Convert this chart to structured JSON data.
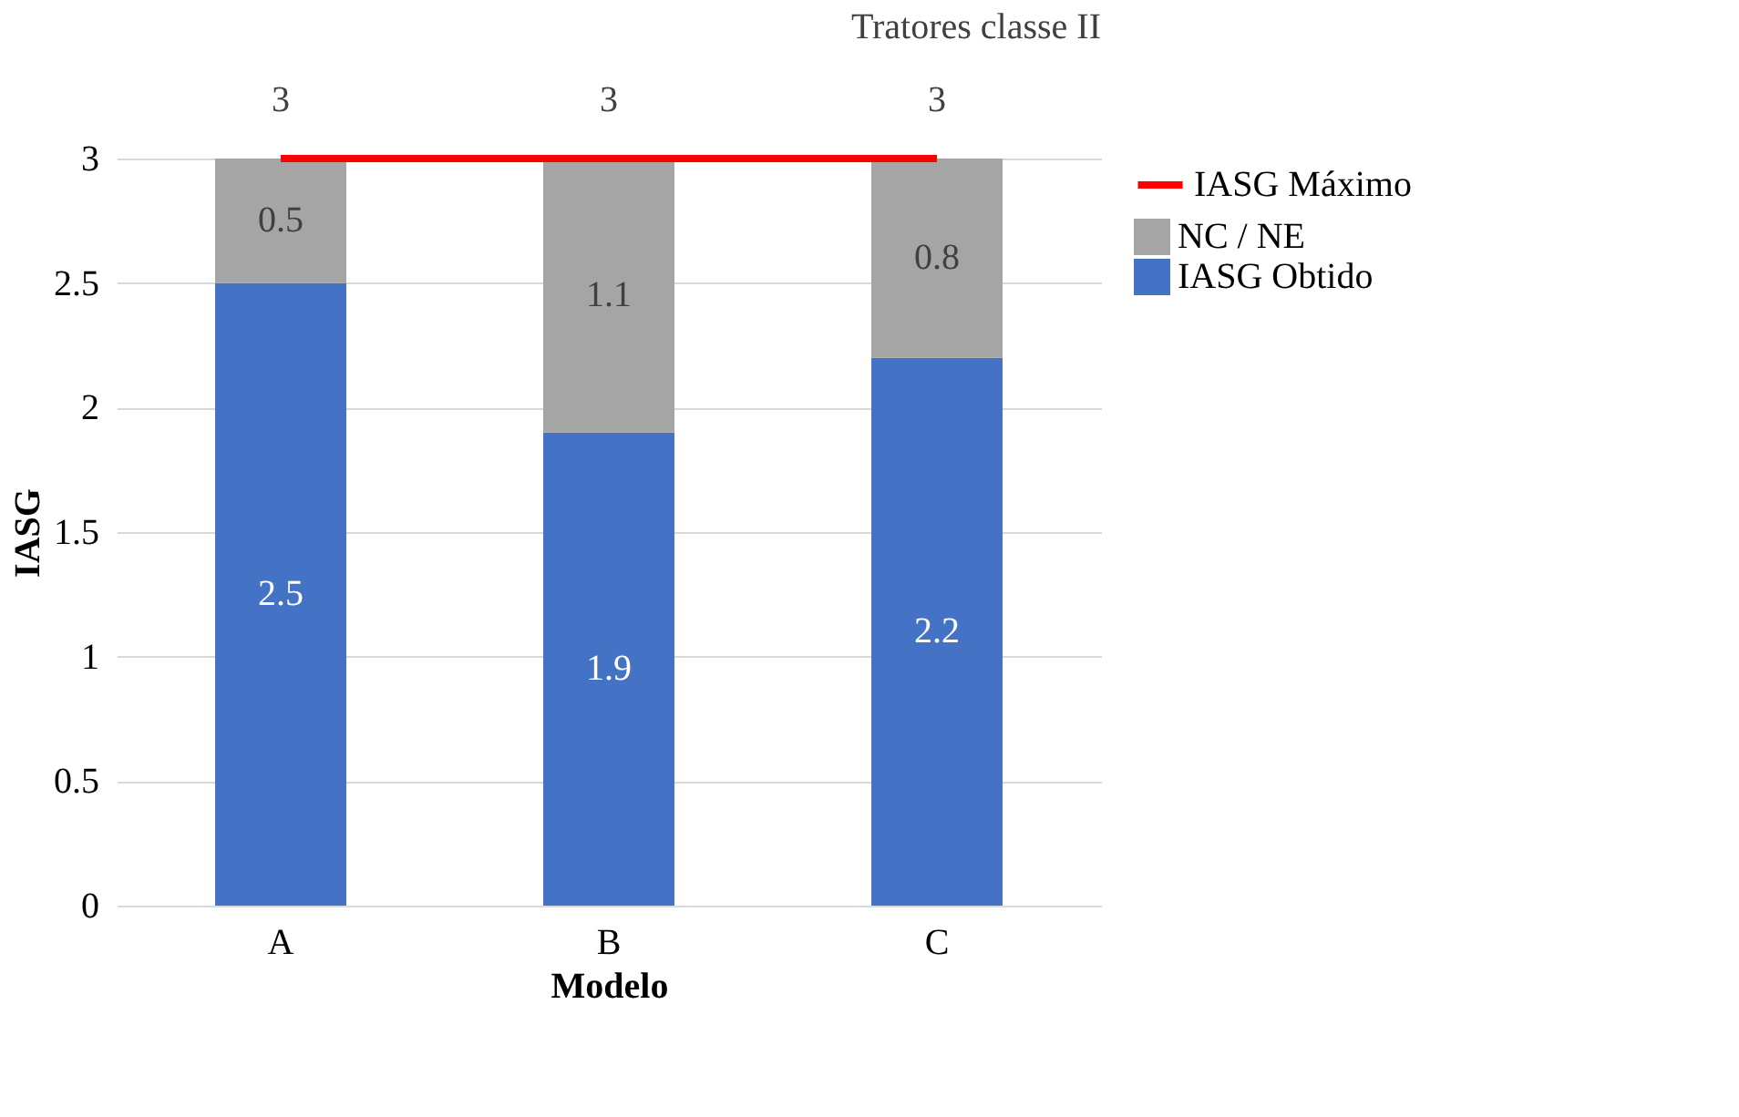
{
  "chart_data": {
    "type": "bar",
    "title": "Tratores classe II",
    "xlabel": "Modelo",
    "ylabel": "IASG",
    "categories": [
      "A",
      "B",
      "C"
    ],
    "stacked": true,
    "series": [
      {
        "name": "IASG Obtido",
        "color": "#4472c4",
        "values": [
          2.5,
          1.9,
          2.2
        ]
      },
      {
        "name": "NC / NE",
        "color": "#a5a5a5",
        "values": [
          0.5,
          1.1,
          0.8
        ]
      },
      {
        "name": "IASG Máximo",
        "type": "line",
        "color": "#ff0000",
        "values": [
          3,
          3,
          3
        ]
      }
    ],
    "ylim": [
      0,
      3
    ],
    "yticks": [
      0,
      0.5,
      1,
      1.5,
      2,
      2.5,
      3
    ],
    "grid": "y",
    "legend": "right",
    "data_labels": true
  }
}
